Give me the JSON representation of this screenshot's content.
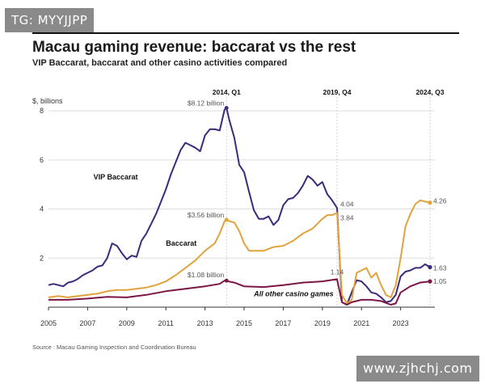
{
  "watermarks": {
    "top": "TG: MYYJJPP",
    "bottom": "www.zjhchj.com"
  },
  "header": {
    "title": "Macau gaming revenue: baccarat vs the rest",
    "subtitle": "VIP Baccarat, baccarat and other casino activities compared"
  },
  "source": "Source : Macau Gaming Inspection and Coordination Bureau",
  "colors": {
    "vip": "#3d2a7a",
    "baccarat": "#e1a33c",
    "other": "#7b1645",
    "grid": "#dddddd"
  },
  "chart_data": {
    "type": "line",
    "title": "Macau gaming revenue: baccarat vs the rest",
    "ylabel": "$, billions",
    "xlabel": "",
    "xlim": [
      2005,
      2024.75
    ],
    "ylim": [
      0,
      8.3
    ],
    "x_ticks": [
      2005,
      2007,
      2009,
      2011,
      2013,
      2015,
      2017,
      2019,
      2021,
      2023
    ],
    "x_tick_labels": [
      "2005",
      "2007",
      "2009",
      "2011",
      "2013",
      "2015",
      "2017",
      "2019",
      "2021",
      "2023"
    ],
    "y_ticks": [
      2,
      4,
      6,
      8
    ],
    "y_tick_labels": [
      "2",
      "4",
      "6",
      "8"
    ],
    "events": [
      {
        "x": 2014.1,
        "label": "2014, Q1"
      },
      {
        "x": 2019.75,
        "label": "2019, Q4"
      },
      {
        "x": 2024.5,
        "label": "2024, Q3"
      }
    ],
    "series": [
      {
        "name": "VIP Baccarat",
        "key": "vip",
        "x": [
          2005.0,
          2005.25,
          2005.5,
          2005.75,
          2006.0,
          2006.25,
          2006.5,
          2006.75,
          2007.0,
          2007.25,
          2007.5,
          2007.75,
          2008.0,
          2008.25,
          2008.5,
          2008.75,
          2009.0,
          2009.25,
          2009.5,
          2009.75,
          2010.0,
          2010.25,
          2010.5,
          2010.75,
          2011.0,
          2011.25,
          2011.5,
          2011.75,
          2012.0,
          2012.25,
          2012.5,
          2012.75,
          2013.0,
          2013.25,
          2013.5,
          2013.75,
          2014.0,
          2014.1,
          2014.25,
          2014.5,
          2014.75,
          2015.0,
          2015.25,
          2015.5,
          2015.75,
          2016.0,
          2016.25,
          2016.5,
          2016.75,
          2017.0,
          2017.25,
          2017.5,
          2017.75,
          2018.0,
          2018.25,
          2018.5,
          2018.75,
          2019.0,
          2019.25,
          2019.5,
          2019.75,
          2020.0,
          2020.25,
          2020.5,
          2020.75,
          2021.0,
          2021.25,
          2021.5,
          2021.75,
          2022.0,
          2022.25,
          2022.5,
          2022.75,
          2023.0,
          2023.25,
          2023.5,
          2023.75,
          2024.0,
          2024.25,
          2024.5
        ],
        "y": [
          0.9,
          0.95,
          0.9,
          0.85,
          1.0,
          1.05,
          1.15,
          1.3,
          1.4,
          1.5,
          1.65,
          1.7,
          2.0,
          2.6,
          2.5,
          2.2,
          1.95,
          2.1,
          2.05,
          2.7,
          3.0,
          3.4,
          3.8,
          4.3,
          4.8,
          5.4,
          5.9,
          6.4,
          6.7,
          6.6,
          6.5,
          6.35,
          7.0,
          7.25,
          7.25,
          7.2,
          8.05,
          8.12,
          7.6,
          6.9,
          5.8,
          5.5,
          4.7,
          3.95,
          3.6,
          3.6,
          3.7,
          3.35,
          3.55,
          4.15,
          4.4,
          4.45,
          4.65,
          4.95,
          5.35,
          5.2,
          4.95,
          5.1,
          4.6,
          4.35,
          4.04,
          0.2,
          0.1,
          0.6,
          1.1,
          1.05,
          0.85,
          0.6,
          0.55,
          0.4,
          0.2,
          0.25,
          0.5,
          1.25,
          1.45,
          1.5,
          1.6,
          1.6,
          1.75,
          1.63
        ]
      },
      {
        "name": "Baccarat",
        "key": "baccarat",
        "x": [
          2005.0,
          2005.5,
          2006.0,
          2006.5,
          2007.0,
          2007.5,
          2008.0,
          2008.5,
          2009.0,
          2009.5,
          2010.0,
          2010.5,
          2011.0,
          2011.5,
          2012.0,
          2012.5,
          2013.0,
          2013.5,
          2013.75,
          2014.0,
          2014.1,
          2014.25,
          2014.5,
          2014.75,
          2015.0,
          2015.25,
          2015.5,
          2015.75,
          2016.0,
          2016.5,
          2017.0,
          2017.5,
          2018.0,
          2018.5,
          2019.0,
          2019.25,
          2019.5,
          2019.75,
          2020.0,
          2020.25,
          2020.5,
          2020.75,
          2021.0,
          2021.25,
          2021.5,
          2021.75,
          2022.0,
          2022.25,
          2022.5,
          2022.75,
          2023.0,
          2023.25,
          2023.5,
          2023.75,
          2024.0,
          2024.25,
          2024.5
        ],
        "y": [
          0.4,
          0.45,
          0.4,
          0.45,
          0.5,
          0.55,
          0.65,
          0.7,
          0.7,
          0.75,
          0.8,
          0.9,
          1.05,
          1.3,
          1.6,
          1.9,
          2.3,
          2.6,
          3.0,
          3.5,
          3.56,
          3.5,
          3.45,
          3.1,
          2.6,
          2.3,
          2.3,
          2.3,
          2.3,
          2.45,
          2.5,
          2.7,
          3.0,
          3.2,
          3.6,
          3.75,
          3.75,
          3.84,
          0.5,
          0.15,
          0.3,
          1.4,
          1.5,
          1.6,
          1.2,
          1.4,
          0.9,
          0.5,
          0.4,
          0.9,
          2.0,
          3.3,
          3.8,
          4.2,
          4.35,
          4.3,
          4.26
        ]
      },
      {
        "name": "All other casino games",
        "key": "other",
        "x": [
          2005.0,
          2006.0,
          2007.0,
          2008.0,
          2009.0,
          2010.0,
          2011.0,
          2012.0,
          2013.0,
          2013.75,
          2014.0,
          2014.5,
          2015.0,
          2016.0,
          2017.0,
          2018.0,
          2019.0,
          2019.75,
          2020.0,
          2020.25,
          2020.5,
          2021.0,
          2021.5,
          2022.0,
          2022.5,
          2022.75,
          2023.0,
          2023.5,
          2024.0,
          2024.5
        ],
        "y": [
          0.3,
          0.3,
          0.35,
          0.42,
          0.4,
          0.5,
          0.65,
          0.75,
          0.85,
          0.95,
          1.08,
          1.0,
          0.85,
          0.82,
          0.9,
          1.0,
          1.05,
          1.14,
          0.2,
          0.1,
          0.2,
          0.3,
          0.3,
          0.25,
          0.1,
          0.15,
          0.6,
          0.85,
          1.0,
          1.05
        ]
      }
    ],
    "annotations": [
      {
        "text": "$8.12 billion",
        "x": 2014.1,
        "y": 8.12
      },
      {
        "text": "$3.56 billion",
        "x": 2014.1,
        "y": 3.56
      },
      {
        "text": "$1.08 billion",
        "x": 2014.1,
        "y": 1.08
      },
      {
        "text": "1.14",
        "x": 2019.75,
        "y": 1.14
      },
      {
        "text": "4.04",
        "x": 2019.75,
        "y": 4.04
      },
      {
        "text": "3.84",
        "x": 2019.75,
        "y": 3.84
      },
      {
        "text": "4.26",
        "x": 2024.5,
        "y": 4.26
      },
      {
        "text": "1.63",
        "x": 2024.5,
        "y": 1.63
      },
      {
        "text": "1.05",
        "x": 2024.5,
        "y": 1.05
      }
    ],
    "series_labels": [
      {
        "text": "VIP Baccarat",
        "key": "vip",
        "x": 2007.3,
        "y": 5.2
      },
      {
        "text": "Baccarat",
        "key": "baccarat",
        "x": 2011.0,
        "y": 2.5
      },
      {
        "text": "All other casino games",
        "key": "other",
        "x": 2015.5,
        "y": 0.45
      }
    ]
  }
}
